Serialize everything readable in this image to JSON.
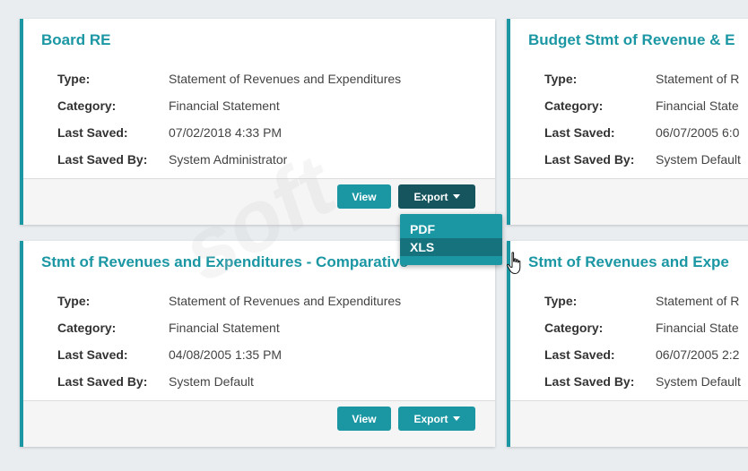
{
  "labels": {
    "type": "Type:",
    "category": "Category:",
    "last_saved": "Last Saved:",
    "last_saved_by": "Last Saved By:"
  },
  "buttons": {
    "view": "View",
    "export": "Export"
  },
  "dropdown": {
    "items": [
      "PDF",
      "XLS"
    ],
    "hovered": "XLS"
  },
  "cards": [
    {
      "title": "Board RE",
      "type": "Statement of Revenues and Expenditures",
      "category": "Financial Statement",
      "last_saved": "07/02/2018 4:33 PM",
      "last_saved_by": "System Administrator"
    },
    {
      "title": "Budget Stmt of Revenue & E",
      "type": "Statement of R",
      "category": "Financial State",
      "last_saved": "06/07/2005 6:0",
      "last_saved_by": "System Default"
    },
    {
      "title": "Stmt of Revenues and Expenditures - Comparative",
      "type": "Statement of Revenues and Expenditures",
      "category": "Financial Statement",
      "last_saved": "04/08/2005 1:35 PM",
      "last_saved_by": "System Default"
    },
    {
      "title": "Stmt of Revenues and Expe",
      "type": "Statement of R",
      "category": "Financial State",
      "last_saved": "06/07/2005 2:2",
      "last_saved_by": "System Default"
    }
  ],
  "colors": {
    "accent": "#1b97a4",
    "export_active": "#16555e",
    "background": "#e9edf0"
  }
}
